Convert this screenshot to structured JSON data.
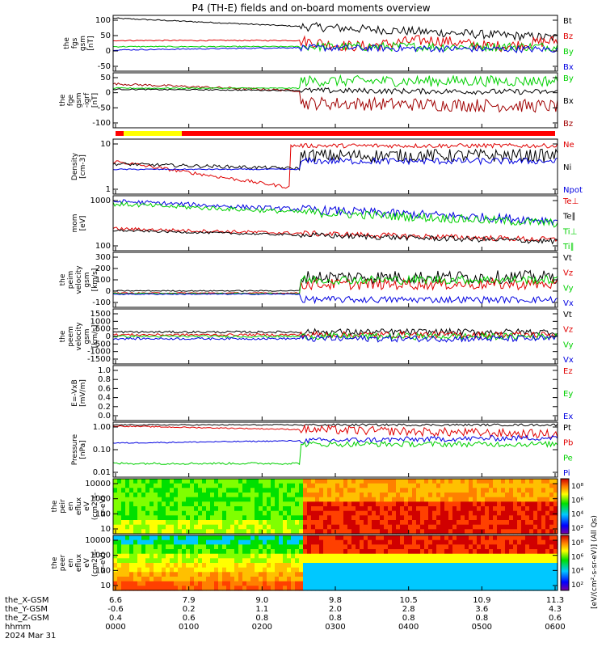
{
  "title": "P4 (TH-E) fields and on-board moments overview",
  "colors": {
    "black": "#000000",
    "red": "#e00000",
    "green": "#00d000",
    "blue": "#0000e0",
    "darkred": "#a00000",
    "yellow": "#ffff00",
    "barred": "#ff0000"
  },
  "chart_data": {
    "type": "line",
    "x_axis": {
      "ticks": [
        "0000",
        "0100",
        "0200",
        "0300",
        "0400",
        "0500",
        "0600"
      ],
      "rows": [
        {
          "label": "the_X-GSM",
          "values": [
            "6.6",
            "7.9",
            "9.0",
            "9.8",
            "10.5",
            "10.9",
            "11.3"
          ]
        },
        {
          "label": "the_Y-GSM",
          "values": [
            "-0.6",
            "0.2",
            "1.1",
            "2.0",
            "2.8",
            "3.6",
            "4.3"
          ]
        },
        {
          "label": "the_Z-GSM",
          "values": [
            "0.4",
            "0.6",
            "0.8",
            "0.8",
            "0.8",
            "0.8",
            "0.6"
          ]
        },
        {
          "label": "hhmm",
          "values": []
        }
      ],
      "date": "2024 Mar 31"
    },
    "panels": [
      {
        "ylabel": [
          "the",
          "fgs",
          "gsm",
          "[nT]"
        ],
        "yticks": [
          "100",
          "50",
          "0",
          "-50"
        ],
        "legend": [
          {
            "text": "Bt",
            "color": "black"
          },
          {
            "text": "Bz",
            "color": "red"
          },
          {
            "text": "By",
            "color": "green"
          },
          {
            "text": "Bx",
            "color": "blue"
          }
        ]
      },
      {
        "ylabel": [
          "the",
          "fge",
          "gsm",
          "-igrf",
          "[nT]"
        ],
        "yticks": [
          "50",
          "0",
          "-50",
          "-100"
        ],
        "legend": [
          {
            "text": "By",
            "color": "green"
          },
          {
            "text": "Bx",
            "color": "black"
          },
          {
            "text": "Bz",
            "color": "darkred"
          }
        ]
      },
      {
        "ylabel": [
          "Density",
          "[cm-3]"
        ],
        "yticks": [
          "10",
          "1"
        ],
        "legend": [
          {
            "text": "Ne",
            "color": "red"
          },
          {
            "text": "Ni",
            "color": "black"
          },
          {
            "text": "Npot",
            "color": "blue"
          }
        ]
      },
      {
        "ylabel": [
          "mom",
          "[eV]"
        ],
        "yticks": [
          "1000",
          "100"
        ],
        "legend": [
          {
            "text": "Te⊥",
            "color": "red"
          },
          {
            "text": "Te∥",
            "color": "black"
          },
          {
            "text": "Ti⊥",
            "color": "green"
          },
          {
            "text": "Ti∥",
            "color": "green"
          }
        ]
      },
      {
        "ylabel": [
          "the",
          "peim",
          "velocity",
          "gsm",
          "[km/s]"
        ],
        "yticks": [
          "300",
          "200",
          "100",
          "0",
          "-100"
        ],
        "legend": [
          {
            "text": "Vt",
            "color": "black"
          },
          {
            "text": "Vz",
            "color": "red"
          },
          {
            "text": "Vy",
            "color": "green"
          },
          {
            "text": "Vx",
            "color": "blue"
          }
        ]
      },
      {
        "ylabel": [
          "the",
          "peem",
          "velocity",
          "gsm",
          "[km/s]"
        ],
        "yticks": [
          "1500",
          "1000",
          "500",
          "0",
          "-500",
          "-1000",
          "-1500"
        ],
        "legend": [
          {
            "text": "Vt",
            "color": "black"
          },
          {
            "text": "Vz",
            "color": "red"
          },
          {
            "text": "Vy",
            "color": "green"
          },
          {
            "text": "Vx",
            "color": "blue"
          }
        ]
      },
      {
        "ylabel": [
          "E=-VxB",
          "[mV/m]"
        ],
        "yticks": [
          "1.0",
          "0.8",
          "0.6",
          "0.4",
          "0.2",
          "0.0"
        ],
        "legend": [
          {
            "text": "Ez",
            "color": "red"
          },
          {
            "text": "Ey",
            "color": "green"
          },
          {
            "text": "Ex",
            "color": "blue"
          }
        ]
      },
      {
        "ylabel": [
          "Pressure",
          "[nPa]"
        ],
        "yticks": [
          "1.00",
          "0.10",
          "0.01"
        ],
        "legend": [
          {
            "text": "Pt",
            "color": "black"
          },
          {
            "text": "Pb",
            "color": "red"
          },
          {
            "text": "Pe",
            "color": "green"
          },
          {
            "text": "Pi",
            "color": "blue"
          }
        ]
      },
      {
        "ylabel": [
          "the",
          "peir",
          "en",
          "eflux",
          "eV",
          "(cm2-s-",
          "sr-eV)"
        ],
        "yticks": [
          "10000",
          "1000",
          "100",
          "10"
        ],
        "type": "heatmap"
      },
      {
        "ylabel": [
          "the",
          "peer",
          "en",
          "eflux",
          "eV",
          "(cm2-s-",
          "sr-eV)"
        ],
        "yticks": [
          "10000",
          "1000",
          "100",
          "10"
        ],
        "type": "heatmap"
      }
    ],
    "colorbars": [
      {
        "ticks": [
          "10⁸",
          "10⁶",
          "10⁴",
          "10²"
        ]
      },
      {
        "ticks": [
          "10⁸",
          "10⁶",
          "10⁴",
          "10²"
        ]
      }
    ],
    "colorbar_label": "[eV/(cm²-s-sr-eV)] (All Qs)"
  }
}
